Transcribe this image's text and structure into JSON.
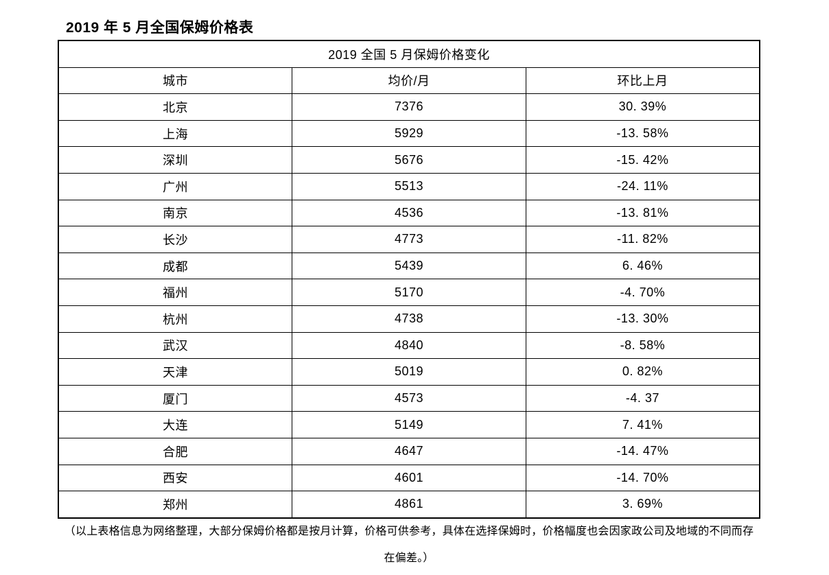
{
  "page": {
    "title": "2019 年 5 月全国保姆价格表",
    "footnote": "（以上表格信息为网络整理，大部分保姆价格都是按月计算，价格可供参考，具体在选择保姆时，价格幅度也会因家政公司及地域的不同而存在偏差。）"
  },
  "chart_data": {
    "type": "table",
    "title": "2019 全国 5 月保姆价格变化",
    "columns": [
      "城市",
      "均价/月",
      "环比上月"
    ],
    "rows": [
      {
        "city": "北京",
        "price": "7376",
        "change": "30. 39%"
      },
      {
        "city": "上海",
        "price": "5929",
        "change": "-13. 58%"
      },
      {
        "city": "深圳",
        "price": "5676",
        "change": "-15. 42%"
      },
      {
        "city": "广州",
        "price": "5513",
        "change": "-24. 11%"
      },
      {
        "city": "南京",
        "price": "4536",
        "change": "-13. 81%"
      },
      {
        "city": "长沙",
        "price": "4773",
        "change": "-11. 82%"
      },
      {
        "city": "成都",
        "price": "5439",
        "change": "6. 46%"
      },
      {
        "city": "福州",
        "price": "5170",
        "change": "-4. 70%"
      },
      {
        "city": "杭州",
        "price": "4738",
        "change": "-13. 30%"
      },
      {
        "city": "武汉",
        "price": "4840",
        "change": "-8. 58%"
      },
      {
        "city": "天津",
        "price": "5019",
        "change": "0. 82%"
      },
      {
        "city": "厦门",
        "price": "4573",
        "change": "-4. 37"
      },
      {
        "city": "大连",
        "price": "5149",
        "change": "7. 41%"
      },
      {
        "city": "合肥",
        "price": "4647",
        "change": "-14. 47%"
      },
      {
        "city": "西安",
        "price": "4601",
        "change": "-14. 70%"
      },
      {
        "city": "郑州",
        "price": "4861",
        "change": "3. 69%"
      }
    ]
  }
}
